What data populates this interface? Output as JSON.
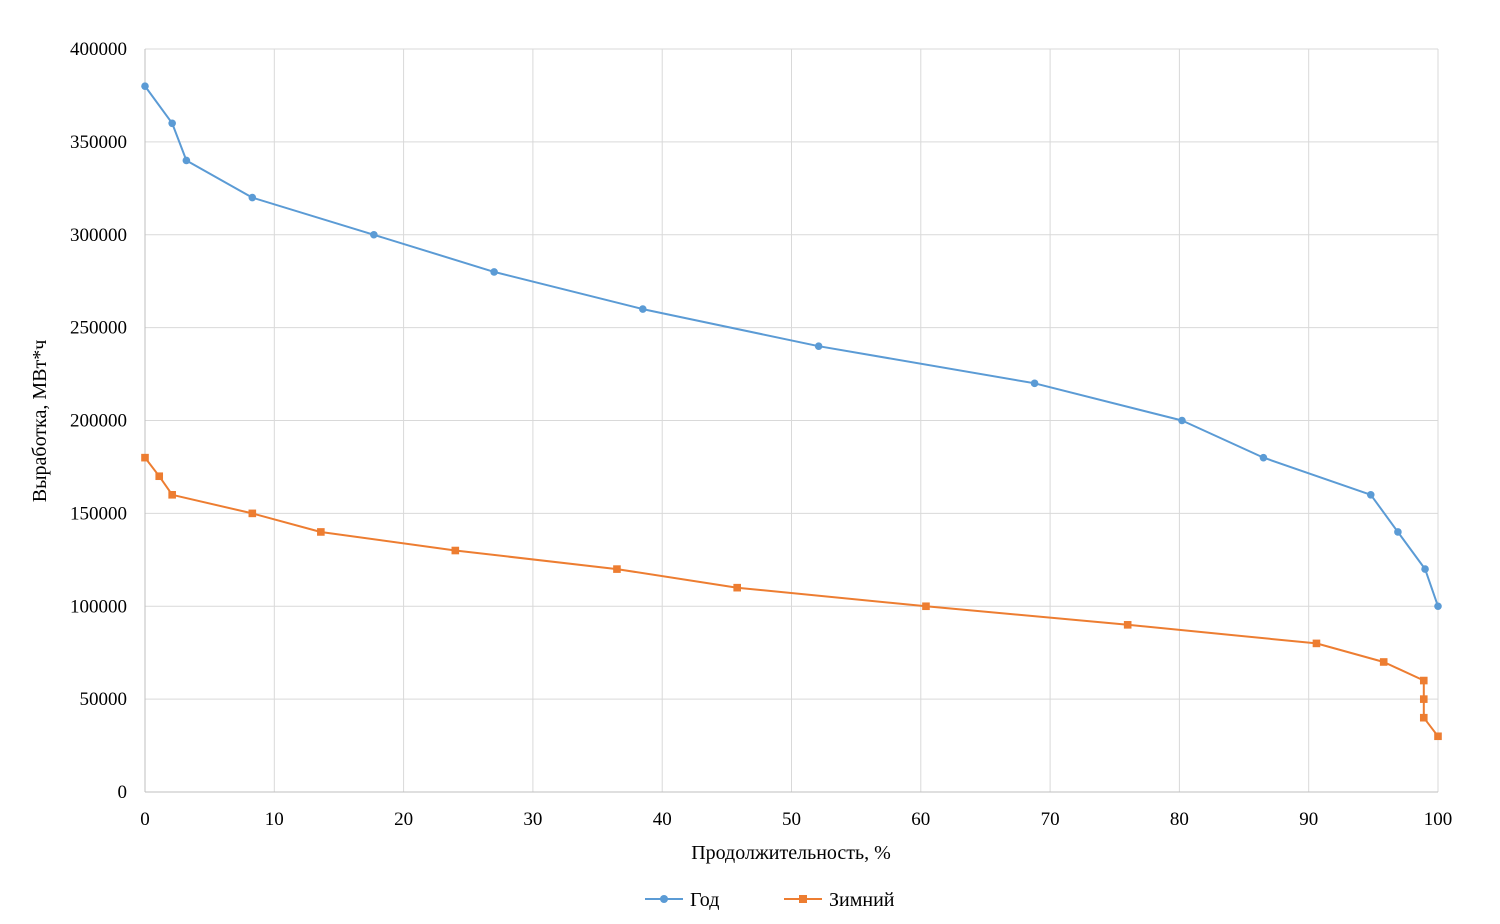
{
  "chart_data": {
    "type": "line",
    "title": "",
    "xlabel": "Продолжительность, %",
    "ylabel": "Выработка, МВт*ч",
    "xlim": [
      0,
      100
    ],
    "ylim": [
      0,
      400000
    ],
    "x_ticks": [
      0,
      10,
      20,
      30,
      40,
      50,
      60,
      70,
      80,
      90,
      100
    ],
    "y_ticks": [
      0,
      50000,
      100000,
      150000,
      200000,
      250000,
      300000,
      350000,
      400000
    ],
    "grid": true,
    "legend_position": "bottom",
    "series": [
      {
        "name": "Год",
        "color": "#5B9BD5",
        "marker": "circle",
        "points": [
          [
            0,
            380000
          ],
          [
            2.1,
            360000
          ],
          [
            3.2,
            340000
          ],
          [
            8.3,
            320000
          ],
          [
            17.7,
            300000
          ],
          [
            27,
            280000
          ],
          [
            38.5,
            260000
          ],
          [
            52.1,
            240000
          ],
          [
            68.8,
            220000
          ],
          [
            80.2,
            200000
          ],
          [
            86.5,
            180000
          ],
          [
            94.8,
            160000
          ],
          [
            96.9,
            140000
          ],
          [
            99,
            120000
          ],
          [
            100,
            100000
          ]
        ]
      },
      {
        "name": "Зимний",
        "color": "#ED7D31",
        "marker": "square",
        "points": [
          [
            0,
            180000
          ],
          [
            1.1,
            170000
          ],
          [
            2.1,
            160000
          ],
          [
            8.3,
            150000
          ],
          [
            13.6,
            140000
          ],
          [
            24,
            130000
          ],
          [
            36.5,
            120000
          ],
          [
            45.8,
            110000
          ],
          [
            60.4,
            100000
          ],
          [
            76,
            90000
          ],
          [
            90.6,
            80000
          ],
          [
            95.8,
            70000
          ],
          [
            98.9,
            60000
          ],
          [
            98.9,
            50000
          ],
          [
            98.9,
            40000
          ],
          [
            100,
            30000
          ]
        ]
      }
    ]
  }
}
